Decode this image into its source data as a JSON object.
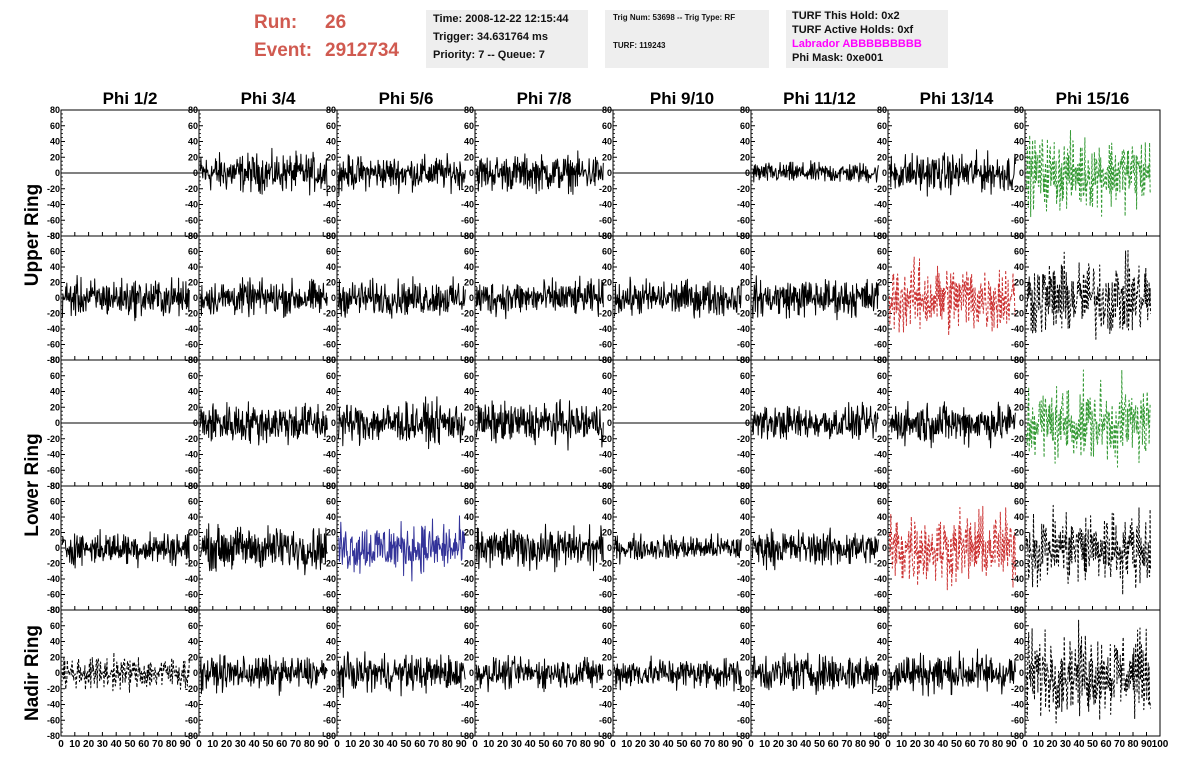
{
  "header": {
    "run_label": "Run:",
    "run_value": "26",
    "event_label": "Event:",
    "event_value": "2912734",
    "time_line": "Time: 2008-12-22 12:15:44",
    "trigger_line": "Trigger: 34.631764 ms",
    "priority_line": "Priority: 7 -- Queue: 7",
    "trig_line": "Trig Num: 53698 -- Trig Type: RF",
    "turf_line": "TURF: 119243",
    "turf_hold_line": "TURF This Hold: 0x2",
    "turf_active_line": "TURF Active Holds: 0xf",
    "labrador_line": "Labrador ABBBBBBBBB",
    "phi_mask_line": "Phi Mask: 0xe001",
    "labrador_color": "#ff00ff"
  },
  "chart_data": {
    "type": "line",
    "columns": [
      "Phi 1/2",
      "Phi 3/4",
      "Phi 5/6",
      "Phi 7/8",
      "Phi 9/10",
      "Phi 11/12",
      "Phi 13/14",
      "Phi 15/16"
    ],
    "ring_labels": [
      "Upper Ring",
      "Lower Ring",
      "Nadir Ring"
    ],
    "ylim": [
      -80,
      80
    ],
    "yticks": [
      -80,
      -60,
      -40,
      -20,
      0,
      20,
      40,
      60,
      80
    ],
    "xlim": [
      0,
      100
    ],
    "xticks": [
      0,
      10,
      20,
      30,
      40,
      50,
      60,
      70,
      80,
      90,
      100
    ],
    "n_points": 260,
    "trace_rows": [
      [
        {
          "style": "flat",
          "color": "#000000",
          "amp": 0
        },
        {
          "style": "solid",
          "color": "#000000",
          "amp": 15
        },
        {
          "style": "solid",
          "color": "#000000",
          "amp": 13
        },
        {
          "style": "solid",
          "color": "#000000",
          "amp": 14
        },
        {
          "style": "flat",
          "color": "#000000",
          "amp": 0
        },
        {
          "style": "solid",
          "color": "#000000",
          "amp": 8
        },
        {
          "style": "solid",
          "color": "#000000",
          "amp": 15
        },
        {
          "style": "dashed",
          "color": "#339933",
          "amp": 28
        }
      ],
      [
        {
          "style": "solid",
          "color": "#000000",
          "amp": 15
        },
        {
          "style": "solid",
          "color": "#000000",
          "amp": 14
        },
        {
          "style": "solid",
          "color": "#000000",
          "amp": 14
        },
        {
          "style": "solid",
          "color": "#000000",
          "amp": 14
        },
        {
          "style": "solid",
          "color": "#000000",
          "amp": 14
        },
        {
          "style": "solid",
          "color": "#000000",
          "amp": 15
        },
        {
          "style": "dashed",
          "color": "#cc3333",
          "amp": 28
        },
        {
          "style": "dashed",
          "color": "#000000",
          "amp": 30
        }
      ],
      [
        {
          "style": "flat",
          "color": "#000000",
          "amp": 0
        },
        {
          "style": "solid",
          "color": "#000000",
          "amp": 16
        },
        {
          "style": "solid",
          "color": "#000000",
          "amp": 16
        },
        {
          "style": "solid",
          "color": "#000000",
          "amp": 16
        },
        {
          "style": "flat",
          "color": "#000000",
          "amp": 0
        },
        {
          "style": "solid",
          "color": "#000000",
          "amp": 13
        },
        {
          "style": "solid",
          "color": "#000000",
          "amp": 16
        },
        {
          "style": "dashed",
          "color": "#339933",
          "amp": 30
        }
      ],
      [
        {
          "style": "solid",
          "color": "#000000",
          "amp": 13
        },
        {
          "style": "solid",
          "color": "#000000",
          "amp": 17
        },
        {
          "style": "solid",
          "color": "#333399",
          "amp": 20
        },
        {
          "style": "solid",
          "color": "#000000",
          "amp": 16
        },
        {
          "style": "solid",
          "color": "#000000",
          "amp": 10
        },
        {
          "style": "solid",
          "color": "#000000",
          "amp": 14
        },
        {
          "style": "dashed",
          "color": "#cc3333",
          "amp": 28
        },
        {
          "style": "dashed",
          "color": "#000000",
          "amp": 30
        }
      ],
      [
        {
          "style": "dashed",
          "color": "#000000",
          "amp": 13
        },
        {
          "style": "solid",
          "color": "#000000",
          "amp": 13
        },
        {
          "style": "solid",
          "color": "#000000",
          "amp": 14
        },
        {
          "style": "solid",
          "color": "#000000",
          "amp": 12
        },
        {
          "style": "solid",
          "color": "#000000",
          "amp": 12
        },
        {
          "style": "solid",
          "color": "#000000",
          "amp": 15
        },
        {
          "style": "solid",
          "color": "#000000",
          "amp": 16
        },
        {
          "style": "dashed",
          "color": "#000000",
          "amp": 32
        }
      ]
    ]
  }
}
